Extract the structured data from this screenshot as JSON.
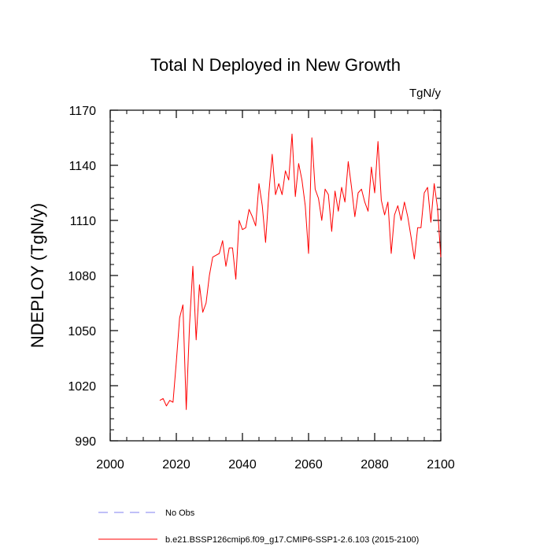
{
  "chart_data": {
    "type": "line",
    "title": "Total N Deployed in New Growth",
    "units_label": "TgN/y",
    "xlabel": "",
    "ylabel": "NDEPLOY  (TgN/y)",
    "xlim": [
      2000,
      2100
    ],
    "ylim": [
      990,
      1170
    ],
    "x_ticks": [
      2000,
      2020,
      2040,
      2060,
      2080,
      2100
    ],
    "y_ticks": [
      990,
      1020,
      1050,
      1080,
      1110,
      1140,
      1170
    ],
    "x_minor_step": 5,
    "y_minor_step": 6,
    "grid": false,
    "legend_position": "bottom-left",
    "series": [
      {
        "name": "b.e21.BSSP126cmip6.f09_g17.CMIP6-SSP1-2.6.103 (2015-2100)",
        "color": "#ff0000",
        "dash": "solid",
        "x": [
          2015,
          2016,
          2017,
          2018,
          2019,
          2020,
          2021,
          2022,
          2023,
          2024,
          2025,
          2026,
          2027,
          2028,
          2029,
          2030,
          2031,
          2032,
          2033,
          2034,
          2035,
          2036,
          2037,
          2038,
          2039,
          2040,
          2041,
          2042,
          2043,
          2044,
          2045,
          2046,
          2047,
          2048,
          2049,
          2050,
          2051,
          2052,
          2053,
          2054,
          2055,
          2056,
          2057,
          2058,
          2059,
          2060,
          2061,
          2062,
          2063,
          2064,
          2065,
          2066,
          2067,
          2068,
          2069,
          2070,
          2071,
          2072,
          2073,
          2074,
          2075,
          2076,
          2077,
          2078,
          2079,
          2080,
          2081,
          2082,
          2083,
          2084,
          2085,
          2086,
          2087,
          2088,
          2089,
          2090,
          2091,
          2092,
          2093,
          2094,
          2095,
          2096,
          2097,
          2098,
          2099,
          2100
        ],
        "y": [
          1012,
          1013,
          1009,
          1012,
          1011,
          1033,
          1057,
          1064,
          1007,
          1053,
          1085,
          1045,
          1075,
          1060,
          1065,
          1080,
          1090,
          1091,
          1092,
          1099,
          1085,
          1095,
          1095,
          1078,
          1110,
          1105,
          1106,
          1116,
          1112,
          1107,
          1130,
          1118,
          1098,
          1125,
          1146,
          1124,
          1130,
          1124,
          1137,
          1132,
          1157,
          1123,
          1141,
          1132,
          1118,
          1092,
          1155,
          1127,
          1122,
          1110,
          1127,
          1124,
          1104,
          1126,
          1115,
          1128,
          1120,
          1142,
          1128,
          1112,
          1125,
          1127,
          1120,
          1115,
          1139,
          1125,
          1153,
          1121,
          1113,
          1120,
          1092,
          1113,
          1118,
          1110,
          1120,
          1112,
          1101,
          1089,
          1106,
          1106,
          1125,
          1128,
          1109,
          1130,
          1117,
          1090
        ]
      },
      {
        "name": "No Obs",
        "color": "#8080f0",
        "dash": "dashed",
        "x": [],
        "y": []
      }
    ]
  }
}
